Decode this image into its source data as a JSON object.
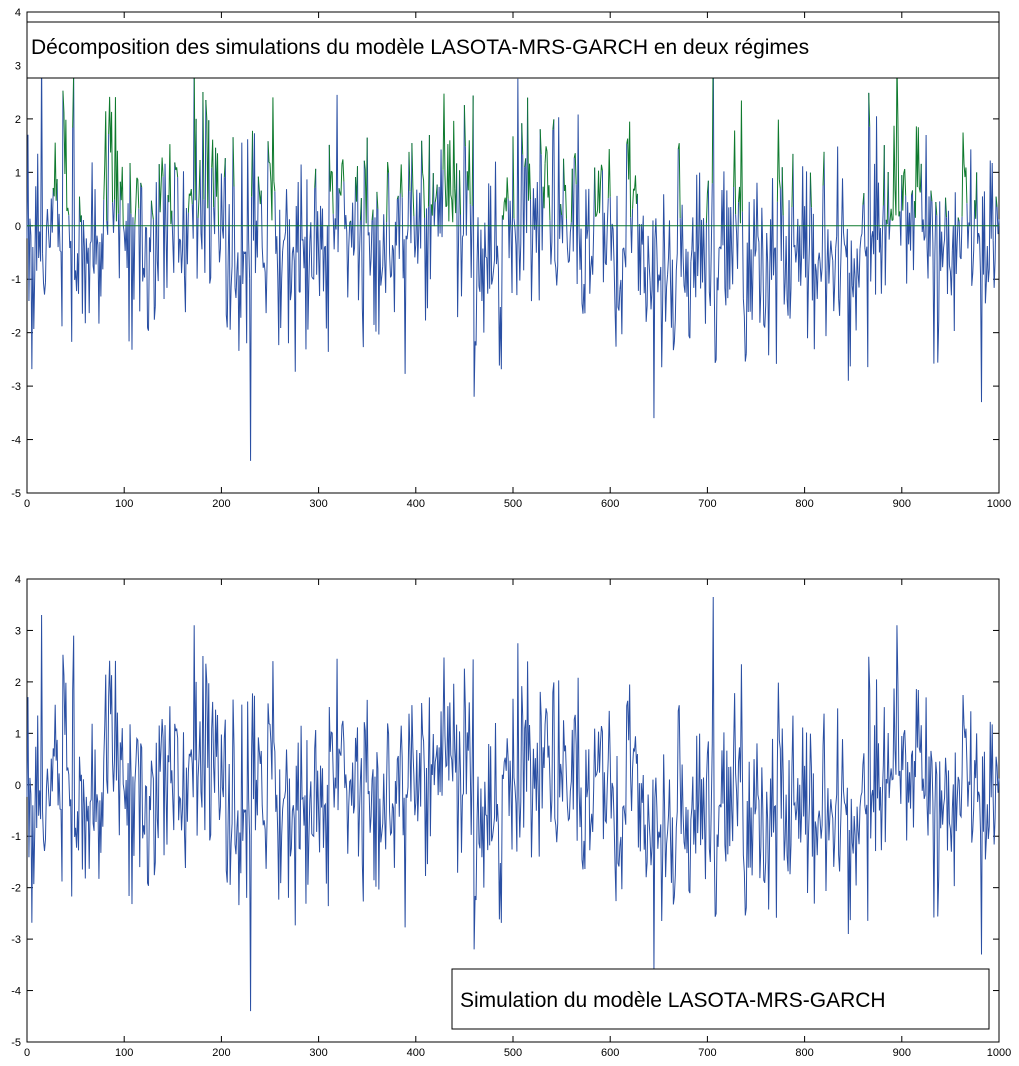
{
  "chart_data": [
    {
      "type": "line",
      "id": "top",
      "annotation": "Décomposition des simulations du modèle LASOTA-MRS-GARCH en deux régimes",
      "legend_position": "top",
      "xlim": [
        0,
        1000
      ],
      "ylim": [
        -5,
        4
      ],
      "xticks": [
        0,
        100,
        200,
        300,
        400,
        500,
        600,
        700,
        800,
        900,
        1000
      ],
      "yticks": [
        -5,
        -4,
        -3,
        -2,
        -1,
        0,
        1,
        2,
        3,
        4
      ],
      "grid": false,
      "series": [
        {
          "color": "#2a4fa3",
          "style": "regime-1 (values below 0)",
          "generated": true,
          "n": 1000,
          "seed": 7
        },
        {
          "color": "#0f7a2e",
          "style": "regime-2 (values above 0)",
          "generated": true
        }
      ],
      "baseline": 0,
      "peaks": [
        {
          "x": 15,
          "y": 3.3
        },
        {
          "x": 48,
          "y": 2.9
        },
        {
          "x": 172,
          "y": 3.1
        },
        {
          "x": 230,
          "y": -4.4
        },
        {
          "x": 460,
          "y": -3.2
        },
        {
          "x": 505,
          "y": 2.75
        },
        {
          "x": 645,
          "y": -3.6
        },
        {
          "x": 706,
          "y": 3.65
        },
        {
          "x": 845,
          "y": -2.9
        },
        {
          "x": 895,
          "y": 3.1
        },
        {
          "x": 982,
          "y": -3.3
        }
      ]
    },
    {
      "type": "line",
      "id": "bottom",
      "annotation": "Simulation du modèle LASOTA-MRS-GARCH",
      "legend_position": "bottom-right",
      "xlim": [
        0,
        1000
      ],
      "ylim": [
        -5,
        4
      ],
      "xticks": [
        0,
        100,
        200,
        300,
        400,
        500,
        600,
        700,
        800,
        900,
        1000
      ],
      "yticks": [
        -5,
        -4,
        -3,
        -2,
        -1,
        0,
        1,
        2,
        3,
        4
      ],
      "grid": false,
      "series": [
        {
          "color": "#2a4fa3",
          "generated": true,
          "n": 1000,
          "seed": 7
        }
      ]
    }
  ]
}
